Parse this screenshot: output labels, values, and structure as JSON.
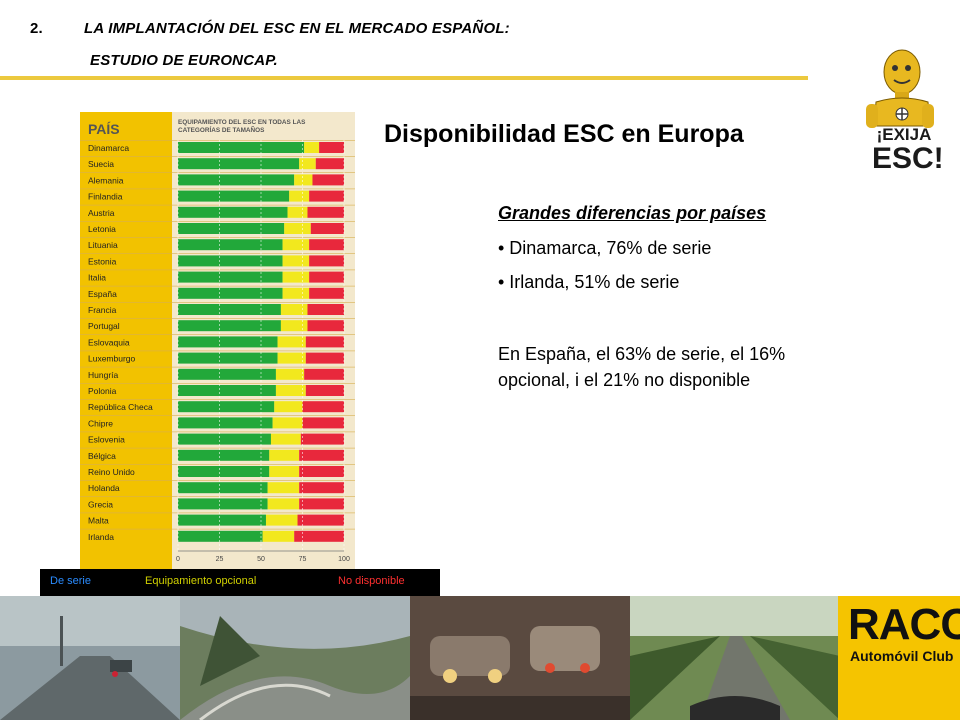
{
  "header": {
    "number": "2.",
    "line1": "LA IMPLANTACIÓN DEL ESC EN EL MERCADO ESPAÑOL:",
    "line2": "ESTUDIO DE EURONCAP."
  },
  "title": "Disponibilidad ESC en Europa",
  "subtitle": "Grandes diferencias por países",
  "bullets": [
    "• Dinamarca, 76% de serie",
    "• Irlanda, 51% de serie"
  ],
  "paragraph": "En España, el 63% de serie, el 16% opcional, i el 21% no disponible",
  "mascot": {
    "line1": "¡EXIJA",
    "line2": "ESC!"
  },
  "legend": {
    "serie": "De serie",
    "opcional": "Equipamiento opcional",
    "no_disponible": "No disponible"
  },
  "logo": {
    "name": "RACC",
    "subtitle": "Automóvil Club"
  },
  "colors": {
    "serie": "#22a83a",
    "opcional": "#f2e81e",
    "no_disponible": "#e8283c",
    "accent": "#f5c400",
    "rule": "#ecc93e"
  },
  "chart_data": {
    "type": "bar",
    "stacked": true,
    "orientation": "horizontal",
    "title_col1": "PAÍS",
    "title_col2": "EQUIPAMIENTO DEL ESC EN TODAS LAS CATEGORÍAS DE TAMAÑOS",
    "xlim": [
      0,
      100
    ],
    "xticks": [
      "0",
      "25",
      "50",
      "75",
      "100"
    ],
    "categories": [
      "Dinamarca",
      "Suecia",
      "Alemania",
      "Finlandia",
      "Austria",
      "Letonia",
      "Lituania",
      "Estonia",
      "Italia",
      "España",
      "Francia",
      "Portugal",
      "Eslovaquia",
      "Luxemburgo",
      "Hungría",
      "Polonia",
      "República Checa",
      "Chipre",
      "Eslovenia",
      "Bélgica",
      "Reino Unido",
      "Holanda",
      "Grecia",
      "Malta",
      "Irlanda"
    ],
    "series": [
      {
        "name": "De serie",
        "values": [
          76,
          73,
          70,
          67,
          66,
          64,
          63,
          63,
          63,
          63,
          62,
          62,
          60,
          60,
          59,
          59,
          58,
          57,
          56,
          55,
          55,
          54,
          54,
          53,
          51
        ]
      },
      {
        "name": "Equipamiento opcional",
        "values": [
          9,
          10,
          11,
          12,
          12,
          16,
          16,
          16,
          16,
          16,
          16,
          16,
          17,
          17,
          17,
          18,
          17,
          18,
          18,
          18,
          18,
          19,
          19,
          19,
          19
        ]
      },
      {
        "name": "No disponible",
        "values": [
          15,
          17,
          19,
          21,
          22,
          20,
          21,
          21,
          21,
          21,
          22,
          22,
          23,
          23,
          24,
          23,
          25,
          25,
          26,
          27,
          27,
          27,
          27,
          28,
          30
        ]
      }
    ]
  }
}
